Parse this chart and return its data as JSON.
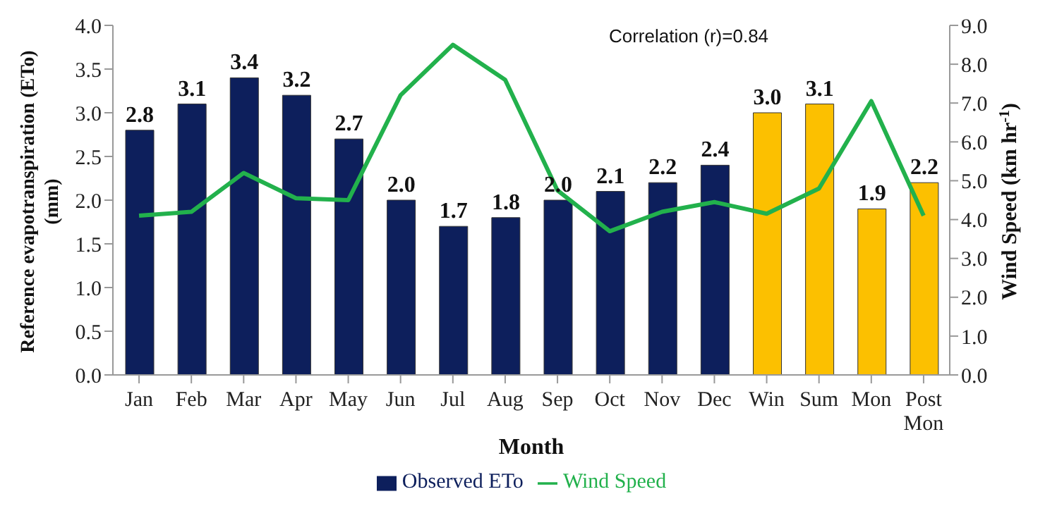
{
  "chart_data": {
    "type": "bar",
    "xlabel": "Month",
    "ylabel": "Reference evapotranspiration (ETo) (mm)",
    "y2label": "Wind Speed (km hr$^{-1}$)",
    "categories": [
      "Jan",
      "Feb",
      "Mar",
      "Apr",
      "May",
      "Jun",
      "Jul",
      "Aug",
      "Sep",
      "Oct",
      "Nov",
      "Dec",
      "Win",
      "Sum",
      "Mon",
      "Post Mon"
    ],
    "series": [
      {
        "name": "Observed ETo",
        "color": "#0d1f5c",
        "colors": [
          "#0d1f5c",
          "#0d1f5c",
          "#0d1f5c",
          "#0d1f5c",
          "#0d1f5c",
          "#0d1f5c",
          "#0d1f5c",
          "#0d1f5c",
          "#0d1f5c",
          "#0d1f5c",
          "#0d1f5c",
          "#0d1f5c",
          "#fcc000",
          "#fcc000",
          "#fcc000",
          "#fcc000"
        ],
        "values": [
          2.8,
          3.1,
          3.4,
          3.2,
          2.7,
          2.0,
          1.7,
          1.8,
          2.0,
          2.1,
          2.2,
          2.4,
          3.0,
          3.1,
          1.9,
          2.2
        ],
        "value_labels": [
          "2.8",
          "3.1",
          "3.4",
          "3.2",
          "2.7",
          "2.0",
          "1.7",
          "1.8",
          "2.0",
          "2.1",
          "2.2",
          "2.4",
          "3.0",
          "3.1",
          "1.9",
          "2.2"
        ]
      },
      {
        "name": "Wind Speed",
        "type": "line",
        "axis": "y2",
        "color": "#22b14c",
        "values": [
          4.1,
          4.2,
          5.2,
          4.55,
          4.5,
          7.2,
          8.5,
          7.6,
          4.75,
          3.7,
          4.2,
          4.45,
          4.15,
          4.8,
          7.05,
          4.1
        ]
      }
    ],
    "ylim": [
      0,
      4
    ],
    "yticks": [
      {
        "value": 0,
        "label": "0.0"
      },
      {
        "value": 0.5,
        "label": "0.5"
      },
      {
        "value": 1,
        "label": "1.0"
      },
      {
        "value": 1.5,
        "label": "1.5"
      },
      {
        "value": 2,
        "label": "2.0"
      },
      {
        "value": 2.5,
        "label": "2.5"
      },
      {
        "value": 3,
        "label": "3.0"
      },
      {
        "value": 3.5,
        "label": "3.5"
      },
      {
        "value": 4,
        "label": "4.0"
      }
    ],
    "y2lim": [
      0,
      9
    ],
    "y2ticks": [
      {
        "value": 0,
        "label": "0.0"
      },
      {
        "value": 1,
        "label": "1.0"
      },
      {
        "value": 2,
        "label": "2.0"
      },
      {
        "value": 3,
        "label": "3.0"
      },
      {
        "value": 4,
        "label": "4.0"
      },
      {
        "value": 5,
        "label": "5.0"
      },
      {
        "value": 6,
        "label": "6.0"
      },
      {
        "value": 7,
        "label": "7.0"
      },
      {
        "value": 8,
        "label": "8.0"
      },
      {
        "value": 9,
        "label": "9.0"
      }
    ],
    "grid": false,
    "legend": "bottom",
    "marker": "none",
    "annotations": [
      "Correlation (r)=0.84"
    ]
  }
}
